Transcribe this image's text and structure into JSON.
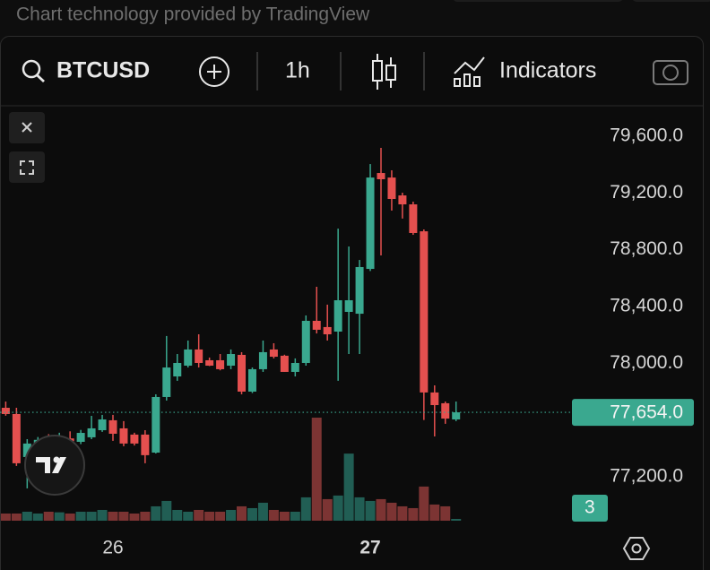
{
  "attribution": "Chart technology provided by TradingView",
  "toolbar": {
    "symbol": "BTCUSD",
    "interval": "1h",
    "indicators": "Indicators"
  },
  "chart_data": {
    "type": "candlestick",
    "categories": [
      null,
      null,
      null,
      null,
      null,
      null,
      null,
      null,
      null,
      null,
      "26",
      null,
      null,
      null,
      null,
      null,
      null,
      null,
      null,
      null,
      null,
      null,
      null,
      null,
      null,
      null,
      null,
      null,
      null,
      null,
      null,
      null,
      null,
      null,
      "27",
      null,
      null,
      null,
      null,
      null,
      null,
      null,
      null
    ],
    "open": [
      77686,
      77642,
      77339,
      77402,
      77460,
      77420,
      77470,
      77446,
      77478,
      77528,
      77598,
      77541,
      77497,
      77497,
      77370,
      77762,
      77907,
      77983,
      78097,
      78021,
      78021,
      77983,
      78059,
      77800,
      77958,
      78097,
      78053,
      77939,
      78002,
      78299,
      78255,
      78223,
      78362,
      78349,
      78665,
      79341,
      79309,
      79183,
      79120,
      78930,
      77794,
      77718,
      77604
    ],
    "high": [
      77730,
      77686,
      77465,
      77480,
      77500,
      77510,
      77520,
      77530,
      77629,
      77636,
      77636,
      77592,
      77510,
      77528,
      77781,
      78192,
      78065,
      78160,
      78204,
      78040,
      78065,
      78097,
      78078,
      77970,
      78160,
      78141,
      78060,
      78034,
      78337,
      78539,
      78413,
      78949,
      78823,
      78728,
      79404,
      79518,
      79360,
      79202,
      79139,
      78943,
      77844,
      77730,
      77730
    ],
    "low": [
      77630,
      77276,
      77118,
      77350,
      77380,
      77390,
      77430,
      77430,
      77465,
      77516,
      77453,
      77415,
      77420,
      77295,
      77364,
      77737,
      77876,
      77970,
      77970,
      77980,
      77950,
      77958,
      77781,
      77790,
      77939,
      78034,
      77939,
      77907,
      77983,
      78210,
      78160,
      77876,
      78065,
      78065,
      78650,
      78760,
      79076,
      79020,
      78905,
      77600,
      77484,
      77573,
      77592
    ],
    "close": [
      77642,
      77295,
      77434,
      77460,
      77420,
      77470,
      77450,
      77509,
      77541,
      77604,
      77503,
      77434,
      77434,
      77352,
      77762,
      77970,
      78002,
      78097,
      78002,
      77983,
      77958,
      78065,
      77800,
      77958,
      78078,
      78046,
      77939,
      78002,
      78299,
      78236,
      78204,
      78444,
      78444,
      78678,
      79309,
      79297,
      79158,
      79120,
      78918,
      77794,
      77705,
      77610,
      77654
    ],
    "volume": [
      12,
      12,
      15,
      12,
      15,
      14,
      12,
      15,
      15,
      18,
      15,
      15,
      12,
      15,
      24,
      33,
      18,
      15,
      18,
      15,
      15,
      18,
      24,
      21,
      30,
      18,
      15,
      15,
      39,
      172,
      36,
      42,
      112,
      39,
      33,
      36,
      30,
      24,
      21,
      57,
      27,
      24,
      3
    ],
    "up_color": "#3aa88f",
    "down_color": "#e5504f",
    "up_volume_color": "#215e54",
    "down_volume_color": "#7c3433",
    "ylim": [
      76770,
      79815
    ],
    "yticks": [
      {
        "value": 77200,
        "label": "77,200.0"
      },
      {
        "value": 78000,
        "label": "78,000.0"
      },
      {
        "value": 78400,
        "label": "78,400.0"
      },
      {
        "value": 78800,
        "label": "78,800.0"
      },
      {
        "value": 79200,
        "label": "79,200.0"
      },
      {
        "value": 79600,
        "label": "79,600.0"
      }
    ],
    "last_price": {
      "value": 77654,
      "label": "77,654.0"
    },
    "grid": false
  }
}
